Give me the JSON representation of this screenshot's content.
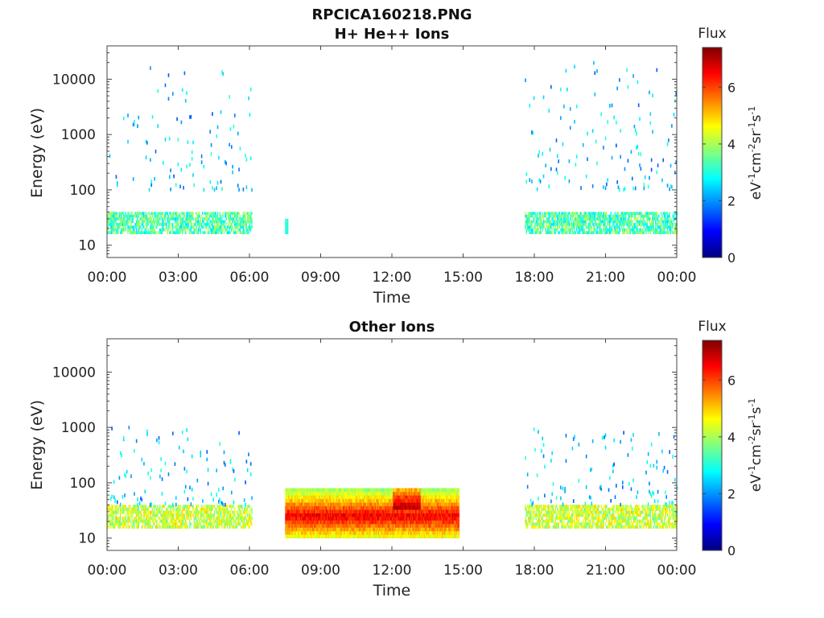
{
  "figure": {
    "title": "RPCICA160218.PNG"
  },
  "colorbar": {
    "title": "Flux",
    "unit_main": "eV",
    "unit_sup1": "-1",
    "unit_cm": "cm",
    "unit_sup2": "-2",
    "unit_sr": "sr",
    "unit_sup3": "-1",
    "unit_s": "s",
    "unit_sup4": "-1",
    "ticks": [
      "0",
      "2",
      "4",
      "6"
    ],
    "range": [
      0,
      7.4
    ],
    "colormap": "jet"
  },
  "chart_data": [
    {
      "type": "heatmap",
      "title": "H+ He++ Ions",
      "xlabel": "Time",
      "ylabel": "Energy (eV)",
      "x_ticks": [
        "00:00",
        "03:00",
        "06:00",
        "09:00",
        "12:00",
        "15:00",
        "18:00",
        "21:00",
        "00:00"
      ],
      "x_range_hours": [
        0,
        24
      ],
      "y_scale": "log",
      "y_range": [
        6,
        40000
      ],
      "y_ticks": [
        "10",
        "100",
        "1000",
        "10000"
      ],
      "data_coverage_hours": [
        [
          0,
          6.1
        ],
        [
          17.6,
          24
        ]
      ],
      "features": [
        {
          "band": "low-energy",
          "energy_range": [
            16,
            40
          ],
          "time_hours": [
            [
              0,
              6.1
            ],
            [
              17.6,
              24
            ]
          ],
          "flux_range": [
            2.5,
            4.2
          ]
        },
        {
          "band": "scattered",
          "energy_range": [
            100,
            20000
          ],
          "time_hours": [
            [
              0,
              6.1
            ],
            [
              17.6,
              24
            ]
          ],
          "flux_range": [
            1.5,
            3.2
          ]
        },
        {
          "band": "isolated",
          "energy_range": [
            16,
            30
          ],
          "time_hours": [
            [
              7.5,
              7.6
            ]
          ],
          "flux_range": [
            2.8,
            3.2
          ]
        }
      ]
    },
    {
      "type": "heatmap",
      "title": "Other Ions",
      "xlabel": "Time",
      "ylabel": "Energy (eV)",
      "x_ticks": [
        "00:00",
        "03:00",
        "06:00",
        "09:00",
        "12:00",
        "15:00",
        "18:00",
        "21:00",
        "00:00"
      ],
      "x_range_hours": [
        0,
        24
      ],
      "y_scale": "log",
      "y_range": [
        6,
        40000
      ],
      "y_ticks": [
        "10",
        "100",
        "1000",
        "10000"
      ],
      "data_coverage_hours": [
        [
          0,
          6.1
        ],
        [
          7.5,
          14.8
        ],
        [
          17.6,
          24
        ]
      ],
      "features": [
        {
          "band": "low-energy",
          "energy_range": [
            15,
            40
          ],
          "time_hours": [
            [
              0,
              6.1
            ],
            [
              17.6,
              24
            ]
          ],
          "flux_range": [
            3.5,
            5.0
          ]
        },
        {
          "band": "scattered",
          "energy_range": [
            40,
            1000
          ],
          "time_hours": [
            [
              0,
              6.1
            ],
            [
              17.6,
              24
            ]
          ],
          "flux_range": [
            1.5,
            3.2
          ]
        },
        {
          "band": "intense",
          "energy_range": [
            10,
            80
          ],
          "time_hours": [
            [
              7.5,
              14.8
            ]
          ],
          "flux_range": [
            3.0,
            7.0
          ]
        }
      ]
    }
  ]
}
